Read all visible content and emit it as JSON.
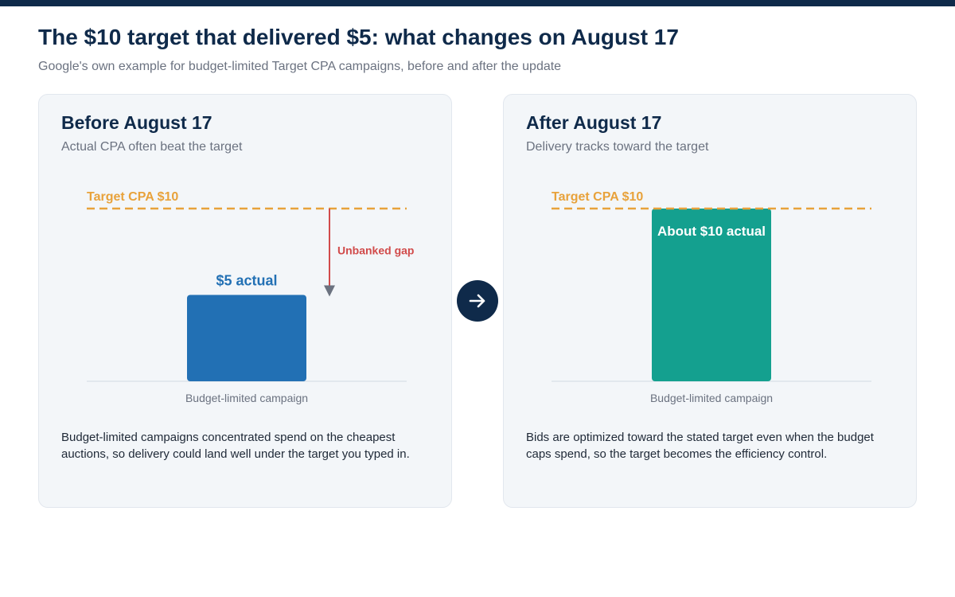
{
  "page": {
    "title": "The $10 target that delivered $5: what changes on August 17",
    "subtitle": "Google's own example for budget-limited Target CPA campaigns, before and after the update"
  },
  "panels": {
    "before": {
      "title": "Before August 17",
      "subtitle": "Actual CPA often beat the target",
      "note": "Budget-limited campaigns concentrated spend on the cheapest auctions, so delivery could land well under the target you typed in."
    },
    "after": {
      "title": "After August 17",
      "subtitle": "Delivery tracks toward the target",
      "note": "Bids are optimized toward the stated target even when the budget caps spend, so the target becomes the efficiency control."
    }
  },
  "icons": {
    "transition": "arrow-right-icon"
  },
  "colors": {
    "title": "#0f2a4a",
    "target_line": "#e8a23b",
    "before_bar": "#2270b4",
    "after_bar": "#14a08f",
    "gap_arrow": "#d14b4b"
  },
  "chart_data": [
    {
      "type": "bar",
      "title": "Before August 17",
      "subtitle": "Actual CPA often beat the target",
      "categories": [
        "Budget-limited campaign"
      ],
      "values": [
        5
      ],
      "bar_label": "$5 actual",
      "target_value": 10,
      "target_label": "Target CPA $10",
      "annotation": "Unbanked gap",
      "ylim": [
        0,
        10
      ],
      "xlabel": "",
      "ylabel": "",
      "grid": false
    },
    {
      "type": "bar",
      "title": "After August 17",
      "subtitle": "Delivery tracks toward the target",
      "categories": [
        "Budget-limited campaign"
      ],
      "values": [
        10
      ],
      "bar_label": "About $10 actual",
      "target_value": 10,
      "target_label": "Target CPA $10",
      "ylim": [
        0,
        10
      ],
      "xlabel": "",
      "ylabel": "",
      "grid": false
    }
  ]
}
